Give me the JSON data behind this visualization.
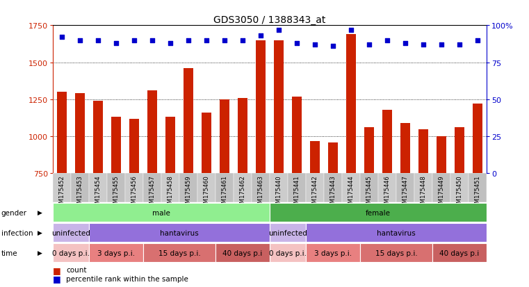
{
  "title": "GDS3050 / 1388343_at",
  "samples": [
    "GSM175452",
    "GSM175453",
    "GSM175454",
    "GSM175455",
    "GSM175456",
    "GSM175457",
    "GSM175458",
    "GSM175459",
    "GSM175460",
    "GSM175461",
    "GSM175462",
    "GSM175463",
    "GSM175440",
    "GSM175441",
    "GSM175442",
    "GSM175443",
    "GSM175444",
    "GSM175445",
    "GSM175446",
    "GSM175447",
    "GSM175448",
    "GSM175449",
    "GSM175450",
    "GSM175451"
  ],
  "counts": [
    1300,
    1290,
    1240,
    1130,
    1120,
    1310,
    1130,
    1460,
    1160,
    1250,
    1260,
    1650,
    1650,
    1270,
    970,
    960,
    1690,
    1060,
    1180,
    1090,
    1050,
    1000,
    1060,
    1220
  ],
  "percentile_ranks": [
    92,
    90,
    90,
    88,
    90,
    90,
    88,
    90,
    90,
    90,
    90,
    93,
    97,
    88,
    87,
    86,
    97,
    87,
    90,
    88,
    87,
    87,
    87,
    90
  ],
  "ymin": 750,
  "ymax": 1750,
  "yticks_left": [
    750,
    1000,
    1250,
    1500,
    1750
  ],
  "yticks_right": [
    0,
    25,
    50,
    75,
    100
  ],
  "ytick_labels_right": [
    "0",
    "25",
    "50",
    "75",
    "100%"
  ],
  "bar_color": "#cc2200",
  "dot_color": "#0000cc",
  "grid_values": [
    1000,
    1250,
    1500
  ],
  "gender_segs": [
    {
      "start": 0,
      "end": 12,
      "color": "#90ee90",
      "label": "male"
    },
    {
      "start": 12,
      "end": 24,
      "color": "#4cae4c",
      "label": "female"
    }
  ],
  "infection_segs": [
    {
      "start": 0,
      "end": 2,
      "color": "#c8b4e8",
      "label": "uninfected"
    },
    {
      "start": 2,
      "end": 12,
      "color": "#9370DB",
      "label": "hantavirus"
    },
    {
      "start": 12,
      "end": 14,
      "color": "#c8b4e8",
      "label": "uninfected"
    },
    {
      "start": 14,
      "end": 24,
      "color": "#9370DB",
      "label": "hantavirus"
    }
  ],
  "time_segs": [
    {
      "start": 0,
      "end": 2,
      "color": "#f4c2c2",
      "label": "0 days p.i."
    },
    {
      "start": 2,
      "end": 5,
      "color": "#e88080",
      "label": "3 days p.i."
    },
    {
      "start": 5,
      "end": 9,
      "color": "#d87070",
      "label": "15 days p.i."
    },
    {
      "start": 9,
      "end": 12,
      "color": "#c86060",
      "label": "40 days p.i"
    },
    {
      "start": 12,
      "end": 14,
      "color": "#f4c2c2",
      "label": "0 days p.i."
    },
    {
      "start": 14,
      "end": 17,
      "color": "#e88080",
      "label": "3 days p.i."
    },
    {
      "start": 17,
      "end": 21,
      "color": "#d87070",
      "label": "15 days p.i."
    },
    {
      "start": 21,
      "end": 24,
      "color": "#c86060",
      "label": "40 days p.i"
    }
  ],
  "background_color": "#ffffff",
  "plot_bg_color": "#ffffff"
}
